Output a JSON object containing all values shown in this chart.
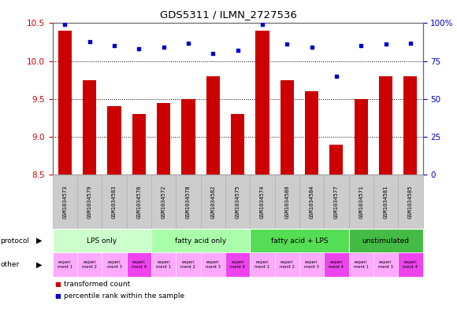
{
  "title": "GDS5311 / ILMN_2727536",
  "samples": [
    "GSM1034573",
    "GSM1034579",
    "GSM1034583",
    "GSM1034576",
    "GSM1034572",
    "GSM1034578",
    "GSM1034582",
    "GSM1034575",
    "GSM1034574",
    "GSM1034580",
    "GSM1034584",
    "GSM1034577",
    "GSM1034571",
    "GSM1034581",
    "GSM1034585"
  ],
  "bar_values": [
    10.4,
    9.75,
    9.4,
    9.3,
    9.45,
    9.5,
    9.8,
    9.3,
    10.4,
    9.75,
    9.6,
    8.9,
    9.5,
    9.8,
    9.8
  ],
  "dot_values": [
    99,
    88,
    85,
    83,
    84,
    87,
    80,
    82,
    99,
    86,
    84,
    65,
    85,
    86,
    87
  ],
  "ylim_left": [
    8.5,
    10.5
  ],
  "ylim_right": [
    0,
    100
  ],
  "yticks_left": [
    8.5,
    9.0,
    9.5,
    10.0,
    10.5
  ],
  "yticks_right": [
    0,
    25,
    50,
    75,
    100
  ],
  "bar_color": "#cc0000",
  "dot_color": "#0000cc",
  "bg_color": "#ffffff",
  "grid_color": "#000000",
  "protocol_groups": [
    {
      "label": "LPS only",
      "start": 0,
      "end": 4,
      "color": "#ccffcc"
    },
    {
      "label": "fatty acid only",
      "start": 4,
      "end": 8,
      "color": "#aaffaa"
    },
    {
      "label": "fatty acid + LPS",
      "start": 8,
      "end": 12,
      "color": "#55dd55"
    },
    {
      "label": "unstimulated",
      "start": 12,
      "end": 15,
      "color": "#44bb44"
    }
  ],
  "other_colors": [
    "#ffaaff",
    "#ffaaff",
    "#ffaaff",
    "#ee44ee",
    "#ffaaff",
    "#ffaaff",
    "#ffaaff",
    "#ee44ee",
    "#ffaaff",
    "#ffaaff",
    "#ffaaff",
    "#ee44ee",
    "#ffaaff",
    "#ffaaff",
    "#ee44ee"
  ],
  "other_labels": [
    "experi\nment 1",
    "experi\nment 2",
    "experi\nment 3",
    "experi\nment 4",
    "experi\nment 1",
    "experi\nment 2",
    "experi\nment 3",
    "experi\nment 4",
    "experi\nment 1",
    "experi\nment 2",
    "experi\nment 3",
    "experi\nment 4",
    "experi\nment 1",
    "experi\nment 3",
    "experi\nment 4"
  ],
  "legend_bar": "transformed count",
  "legend_dot": "percentile rank within the sample",
  "left_axis_color": "#cc0000",
  "right_axis_color": "#0000cc",
  "sample_bg_color": "#cccccc",
  "sample_border_color": "#aaaaaa"
}
